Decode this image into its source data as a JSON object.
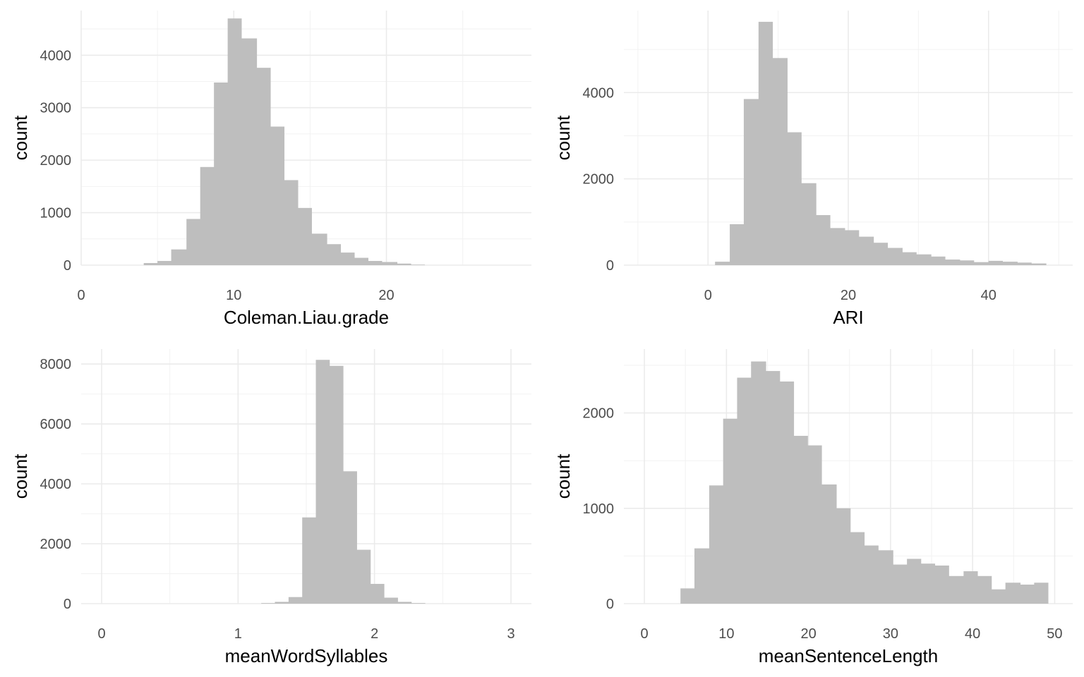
{
  "chart_data": [
    {
      "type": "bar",
      "xlabel": "Coleman.Liau.grade",
      "ylabel": "count",
      "bar_color": "#bebebe",
      "grid": true,
      "xlim": [
        0,
        29.5
      ],
      "ylim": [
        0,
        4850
      ],
      "x_ticks": [
        0,
        10,
        20
      ],
      "y_ticks": [
        0,
        1000,
        2000,
        3000,
        4000
      ],
      "bins": [
        {
          "x0": 4.1,
          "x1": 5.0,
          "count": 40
        },
        {
          "x0": 5.0,
          "x1": 5.9,
          "count": 80
        },
        {
          "x0": 5.9,
          "x1": 6.9,
          "count": 300
        },
        {
          "x0": 6.9,
          "x1": 7.8,
          "count": 880
        },
        {
          "x0": 7.8,
          "x1": 8.7,
          "count": 1870
        },
        {
          "x0": 8.7,
          "x1": 9.6,
          "count": 3480
        },
        {
          "x0": 9.6,
          "x1": 10.5,
          "count": 4700
        },
        {
          "x0": 10.5,
          "x1": 11.5,
          "count": 4320
        },
        {
          "x0": 11.5,
          "x1": 12.4,
          "count": 3760
        },
        {
          "x0": 12.4,
          "x1": 13.3,
          "count": 2640
        },
        {
          "x0": 13.3,
          "x1": 14.2,
          "count": 1620
        },
        {
          "x0": 14.2,
          "x1": 15.1,
          "count": 1090
        },
        {
          "x0": 15.1,
          "x1": 16.1,
          "count": 600
        },
        {
          "x0": 16.1,
          "x1": 17.0,
          "count": 400
        },
        {
          "x0": 17.0,
          "x1": 17.9,
          "count": 240
        },
        {
          "x0": 17.9,
          "x1": 18.8,
          "count": 140
        },
        {
          "x0": 18.8,
          "x1": 19.7,
          "count": 80
        },
        {
          "x0": 19.7,
          "x1": 20.7,
          "count": 60
        },
        {
          "x0": 20.7,
          "x1": 21.6,
          "count": 30
        },
        {
          "x0": 21.6,
          "x1": 22.5,
          "count": 10
        }
      ]
    },
    {
      "type": "bar",
      "xlabel": "ARI",
      "ylabel": "count",
      "bar_color": "#bebebe",
      "grid": true,
      "xlim": [
        -12,
        52
      ],
      "ylim": [
        0,
        5900
      ],
      "x_ticks": [
        0,
        20,
        40
      ],
      "y_ticks": [
        0,
        2000,
        4000
      ],
      "bins": [
        {
          "x0": 1.0,
          "x1": 3.1,
          "count": 80
        },
        {
          "x0": 3.1,
          "x1": 5.1,
          "count": 950
        },
        {
          "x0": 5.1,
          "x1": 7.2,
          "count": 3850
        },
        {
          "x0": 7.2,
          "x1": 9.2,
          "count": 5640
        },
        {
          "x0": 9.2,
          "x1": 11.3,
          "count": 4800
        },
        {
          "x0": 11.3,
          "x1": 13.3,
          "count": 3080
        },
        {
          "x0": 13.3,
          "x1": 15.4,
          "count": 1900
        },
        {
          "x0": 15.4,
          "x1": 17.4,
          "count": 1160
        },
        {
          "x0": 17.4,
          "x1": 19.5,
          "count": 860
        },
        {
          "x0": 19.5,
          "x1": 21.5,
          "count": 810
        },
        {
          "x0": 21.5,
          "x1": 23.6,
          "count": 660
        },
        {
          "x0": 23.6,
          "x1": 25.6,
          "count": 520
        },
        {
          "x0": 25.6,
          "x1": 27.7,
          "count": 400
        },
        {
          "x0": 27.7,
          "x1": 29.7,
          "count": 300
        },
        {
          "x0": 29.7,
          "x1": 31.8,
          "count": 250
        },
        {
          "x0": 31.8,
          "x1": 33.8,
          "count": 200
        },
        {
          "x0": 33.8,
          "x1": 35.9,
          "count": 130
        },
        {
          "x0": 35.9,
          "x1": 37.9,
          "count": 110
        },
        {
          "x0": 37.9,
          "x1": 40.0,
          "count": 70
        },
        {
          "x0": 40.0,
          "x1": 42.0,
          "count": 100
        },
        {
          "x0": 42.0,
          "x1": 44.1,
          "count": 80
        },
        {
          "x0": 44.1,
          "x1": 46.1,
          "count": 60
        },
        {
          "x0": 46.1,
          "x1": 48.2,
          "count": 40
        }
      ]
    },
    {
      "type": "bar",
      "xlabel": "meanWordSyllables",
      "ylabel": "count",
      "bar_color": "#bebebe",
      "grid": true,
      "xlim": [
        -0.15,
        3.15
      ],
      "ylim": [
        0,
        8500
      ],
      "x_ticks": [
        0,
        1,
        2,
        3
      ],
      "y_ticks": [
        0,
        2000,
        4000,
        6000,
        8000
      ],
      "bins": [
        {
          "x0": 1.17,
          "x1": 1.27,
          "count": 20
        },
        {
          "x0": 1.27,
          "x1": 1.37,
          "count": 60
        },
        {
          "x0": 1.37,
          "x1": 1.47,
          "count": 220
        },
        {
          "x0": 1.47,
          "x1": 1.57,
          "count": 2880
        },
        {
          "x0": 1.57,
          "x1": 1.67,
          "count": 8140
        },
        {
          "x0": 1.67,
          "x1": 1.77,
          "count": 7940
        },
        {
          "x0": 1.77,
          "x1": 1.87,
          "count": 4420
        },
        {
          "x0": 1.87,
          "x1": 1.97,
          "count": 1800
        },
        {
          "x0": 1.97,
          "x1": 2.07,
          "count": 660
        },
        {
          "x0": 2.07,
          "x1": 2.17,
          "count": 200
        },
        {
          "x0": 2.17,
          "x1": 2.27,
          "count": 60
        },
        {
          "x0": 2.27,
          "x1": 2.37,
          "count": 20
        }
      ]
    },
    {
      "type": "bar",
      "xlabel": "meanSentenceLength",
      "ylabel": "count",
      "bar_color": "#bebebe",
      "grid": true,
      "xlim": [
        -2.5,
        52.2
      ],
      "ylim": [
        0,
        2670
      ],
      "x_ticks": [
        0,
        10,
        20,
        30,
        40,
        50
      ],
      "y_ticks": [
        0,
        1000,
        2000
      ],
      "bins": [
        {
          "x0": 4.4,
          "x1": 6.1,
          "count": 160
        },
        {
          "x0": 6.1,
          "x1": 7.9,
          "count": 580
        },
        {
          "x0": 7.9,
          "x1": 9.6,
          "count": 1240
        },
        {
          "x0": 9.6,
          "x1": 11.3,
          "count": 1940
        },
        {
          "x0": 11.3,
          "x1": 13.0,
          "count": 2370
        },
        {
          "x0": 13.0,
          "x1": 14.8,
          "count": 2540
        },
        {
          "x0": 14.8,
          "x1": 16.5,
          "count": 2440
        },
        {
          "x0": 16.5,
          "x1": 18.2,
          "count": 2330
        },
        {
          "x0": 18.2,
          "x1": 19.9,
          "count": 1760
        },
        {
          "x0": 19.9,
          "x1": 21.6,
          "count": 1660
        },
        {
          "x0": 21.6,
          "x1": 23.4,
          "count": 1250
        },
        {
          "x0": 23.4,
          "x1": 25.1,
          "count": 1000
        },
        {
          "x0": 25.1,
          "x1": 26.8,
          "count": 750
        },
        {
          "x0": 26.8,
          "x1": 28.5,
          "count": 610
        },
        {
          "x0": 28.5,
          "x1": 30.3,
          "count": 560
        },
        {
          "x0": 30.3,
          "x1": 32.0,
          "count": 410
        },
        {
          "x0": 32.0,
          "x1": 33.7,
          "count": 470
        },
        {
          "x0": 33.7,
          "x1": 35.4,
          "count": 420
        },
        {
          "x0": 35.4,
          "x1": 37.1,
          "count": 400
        },
        {
          "x0": 37.1,
          "x1": 38.9,
          "count": 290
        },
        {
          "x0": 38.9,
          "x1": 40.6,
          "count": 340
        },
        {
          "x0": 40.6,
          "x1": 42.3,
          "count": 290
        },
        {
          "x0": 42.3,
          "x1": 44.0,
          "count": 150
        },
        {
          "x0": 44.0,
          "x1": 45.8,
          "count": 220
        },
        {
          "x0": 45.8,
          "x1": 47.5,
          "count": 200
        },
        {
          "x0": 47.5,
          "x1": 49.2,
          "count": 220
        }
      ]
    }
  ]
}
